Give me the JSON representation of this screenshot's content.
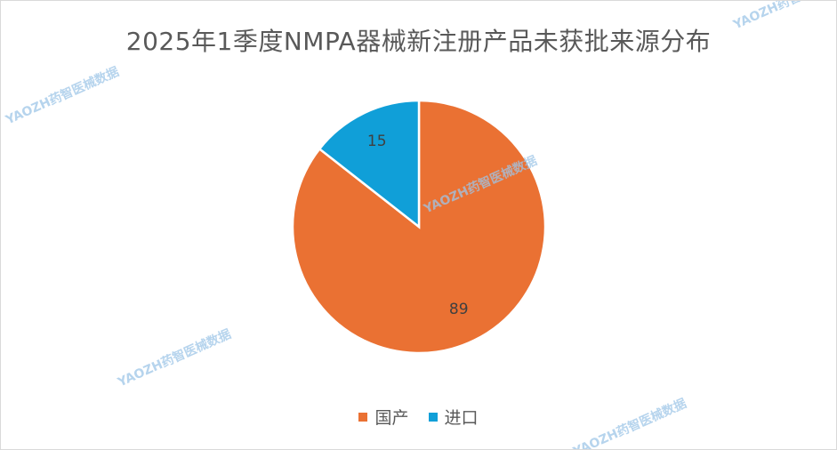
{
  "chart_data": {
    "type": "pie",
    "title": "2025年1季度NMPA器械新注册产品未获批来源分布",
    "categories": [
      "国产",
      "进口"
    ],
    "values": [
      89,
      15
    ],
    "colors": [
      "#ea7133",
      "#109fd8"
    ],
    "legend_position": "bottom",
    "start": "clockwise from top, 国产 first"
  },
  "watermark": {
    "text": "YAOZH药智医械数据"
  }
}
